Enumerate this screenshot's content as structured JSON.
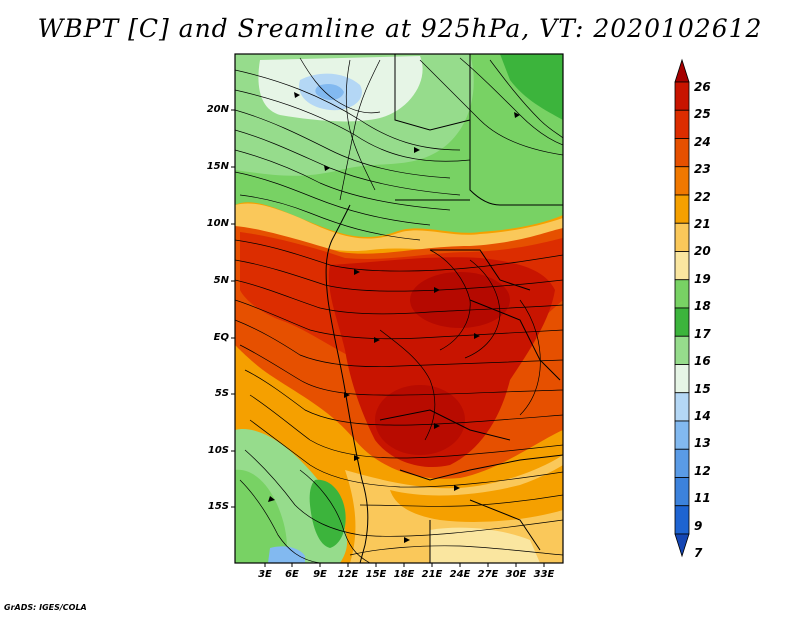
{
  "title": "WBPT [C] and Sreamline at 925hPa, VT: 2020102612",
  "footer": "GrADS: IGES/COLA",
  "map": {
    "lat_labels": [
      "20N",
      "15N",
      "10N",
      "5N",
      "EQ",
      "5S",
      "10S",
      "15S"
    ],
    "lon_labels": [
      "3E",
      "6E",
      "9E",
      "12E",
      "15E",
      "18E",
      "21E",
      "24E",
      "27E",
      "30E",
      "33E"
    ]
  },
  "colorbar": {
    "levels": [
      "26",
      "25",
      "24",
      "23",
      "22",
      "21",
      "20",
      "19",
      "18",
      "17",
      "16",
      "15",
      "14",
      "13",
      "12",
      "11",
      "9",
      "7"
    ],
    "colors": [
      "#a50000",
      "#c81400",
      "#dc2d00",
      "#e65000",
      "#f07800",
      "#f5a000",
      "#fac85a",
      "#fae6a0",
      "#78d264",
      "#3cb43c",
      "#96dc8c",
      "#e6f5e6",
      "#b4d7f5",
      "#82b9f0",
      "#5a9be6",
      "#3c82dc",
      "#1e64d2",
      "#1446b4"
    ]
  }
}
